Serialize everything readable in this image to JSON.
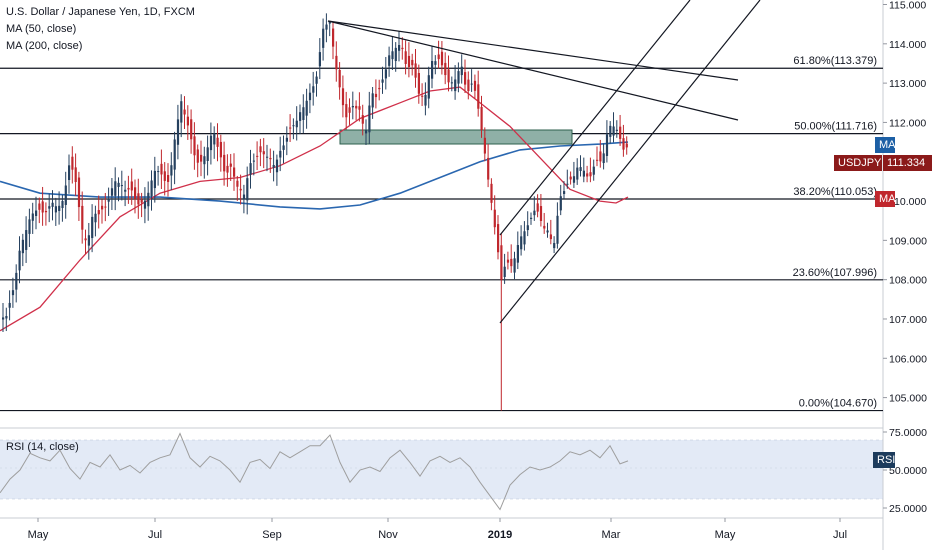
{
  "header": {
    "title": "U.S. Dollar / Japanese Yen, 1D, FXCM",
    "ma1_label": "MA (50, close)",
    "ma2_label": "MA (200, close)"
  },
  "rsi": {
    "label": "RSI (14, close)",
    "ticks": [
      "75.0000",
      "50.0000",
      "25.0000"
    ],
    "badge": "RSI"
  },
  "tags": {
    "ma_top": "MA",
    "symbol": "USDJPY",
    "price": "111.334",
    "ma_bottom": "MA"
  },
  "colors": {
    "candle_up": "#26415f",
    "candle_down": "#c0272d",
    "ma50": "#d0304a",
    "ma200": "#2a67b0",
    "zone_fill": "#8fb0a7",
    "rsi_band": "#e3eaf6",
    "rsi_line": "#9e9e9e",
    "tag_blue": "#1c5fa5",
    "tag_red": "#8b1a1a"
  },
  "chart_data": {
    "type": "candlestick",
    "title": "U.S. Dollar / Japanese Yen, 1D, FXCM",
    "ylim": [
      104.3,
      115.1
    ],
    "y_ticks": [
      "115.000",
      "114.000",
      "113.000",
      "112.000",
      "111.000",
      "110.000",
      "109.000",
      "108.000",
      "107.000",
      "106.000",
      "105.000"
    ],
    "x_ticks": [
      "May",
      "Jul",
      "Sep",
      "Nov",
      "2019",
      "Mar",
      "May",
      "Jul"
    ],
    "last_price": 111.334,
    "fib_levels": [
      {
        "label": "61.80%(113.379)",
        "value": 113.379
      },
      {
        "label": "50.00%(111.716)",
        "value": 111.716
      },
      {
        "label": "38.20%(110.053)",
        "value": 110.053
      },
      {
        "label": "23.60%(107.996)",
        "value": 107.996
      },
      {
        "label": "0.00%(104.670)",
        "value": 104.67
      }
    ],
    "series": [
      {
        "name": "MA (50, close)"
      },
      {
        "name": "MA (200, close)"
      }
    ],
    "price_path": [
      [
        0,
        107.0
      ],
      [
        8,
        107.1
      ],
      [
        14,
        107.7
      ],
      [
        20,
        108.7
      ],
      [
        28,
        109.5
      ],
      [
        36,
        109.8
      ],
      [
        44,
        109.6
      ],
      [
        54,
        110.0
      ],
      [
        62,
        109.9
      ],
      [
        70,
        110.9
      ],
      [
        76,
        110.5
      ],
      [
        82,
        109.3
      ],
      [
        88,
        109.0
      ],
      [
        94,
        109.8
      ],
      [
        100,
        109.6
      ],
      [
        108,
        109.9
      ],
      [
        116,
        110.6
      ],
      [
        124,
        110.4
      ],
      [
        132,
        110.2
      ],
      [
        140,
        109.8
      ],
      [
        148,
        110.2
      ],
      [
        156,
        110.9
      ],
      [
        164,
        110.5
      ],
      [
        170,
        110.4
      ],
      [
        176,
        111.8
      ],
      [
        182,
        112.6
      ],
      [
        188,
        112.0
      ],
      [
        194,
        111.2
      ],
      [
        200,
        110.8
      ],
      [
        208,
        111.4
      ],
      [
        214,
        111.9
      ],
      [
        220,
        111.2
      ],
      [
        226,
        110.6
      ],
      [
        232,
        110.8
      ],
      [
        238,
        110.4
      ],
      [
        244,
        110.2
      ],
      [
        250,
        110.9
      ],
      [
        258,
        111.1
      ],
      [
        266,
        111.2
      ],
      [
        274,
        111.0
      ],
      [
        282,
        111.3
      ],
      [
        290,
        111.7
      ],
      [
        298,
        112.1
      ],
      [
        306,
        112.6
      ],
      [
        312,
        112.8
      ],
      [
        318,
        113.2
      ],
      [
        324,
        114.4
      ],
      [
        330,
        114.6
      ],
      [
        336,
        113.6
      ],
      [
        342,
        112.6
      ],
      [
        348,
        112.0
      ],
      [
        354,
        112.4
      ],
      [
        360,
        112.3
      ],
      [
        366,
        111.8
      ],
      [
        372,
        112.8
      ],
      [
        378,
        112.6
      ],
      [
        384,
        113.1
      ],
      [
        390,
        113.7
      ],
      [
        396,
        114.0
      ],
      [
        402,
        114.0
      ],
      [
        408,
        113.3
      ],
      [
        414,
        113.4
      ],
      [
        420,
        112.6
      ],
      [
        426,
        112.8
      ],
      [
        432,
        113.6
      ],
      [
        438,
        113.6
      ],
      [
        444,
        113.3
      ],
      [
        450,
        112.9
      ],
      [
        456,
        113.2
      ],
      [
        462,
        113.5
      ],
      [
        468,
        112.7
      ],
      [
        474,
        113.0
      ],
      [
        480,
        112.1
      ],
      [
        486,
        111.2
      ],
      [
        490,
        110.3
      ],
      [
        494,
        109.7
      ],
      [
        498,
        108.8
      ],
      [
        502,
        107.9
      ],
      [
        506,
        108.4
      ],
      [
        512,
        108.3
      ],
      [
        518,
        108.9
      ],
      [
        524,
        109.3
      ],
      [
        530,
        109.4
      ],
      [
        536,
        109.8
      ],
      [
        542,
        109.4
      ],
      [
        548,
        109.3
      ],
      [
        554,
        108.9
      ],
      [
        560,
        110.0
      ],
      [
        566,
        110.3
      ],
      [
        572,
        110.5
      ],
      [
        578,
        110.9
      ],
      [
        584,
        110.9
      ],
      [
        590,
        110.5
      ],
      [
        596,
        111.0
      ],
      [
        602,
        110.9
      ],
      [
        608,
        111.8
      ],
      [
        612,
        112.0
      ],
      [
        616,
        112.0
      ],
      [
        620,
        111.6
      ],
      [
        624,
        111.3
      ],
      [
        628,
        111.3
      ]
    ],
    "rsi_path": [
      [
        0,
        35
      ],
      [
        10,
        44
      ],
      [
        20,
        50
      ],
      [
        30,
        61
      ],
      [
        40,
        58
      ],
      [
        50,
        56
      ],
      [
        60,
        63
      ],
      [
        70,
        51
      ],
      [
        80,
        44
      ],
      [
        90,
        55
      ],
      [
        100,
        52
      ],
      [
        110,
        60
      ],
      [
        120,
        50
      ],
      [
        130,
        53
      ],
      [
        140,
        48
      ],
      [
        150,
        55
      ],
      [
        160,
        58
      ],
      [
        170,
        60
      ],
      [
        180,
        74
      ],
      [
        190,
        58
      ],
      [
        200,
        52
      ],
      [
        210,
        59
      ],
      [
        220,
        56
      ],
      [
        230,
        50
      ],
      [
        240,
        42
      ],
      [
        250,
        55
      ],
      [
        260,
        57
      ],
      [
        270,
        51
      ],
      [
        280,
        62
      ],
      [
        290,
        58
      ],
      [
        300,
        62
      ],
      [
        310,
        66
      ],
      [
        320,
        66
      ],
      [
        330,
        73
      ],
      [
        340,
        55
      ],
      [
        350,
        42
      ],
      [
        360,
        50
      ],
      [
        370,
        52
      ],
      [
        380,
        49
      ],
      [
        390,
        58
      ],
      [
        400,
        63
      ],
      [
        410,
        55
      ],
      [
        420,
        46
      ],
      [
        430,
        56
      ],
      [
        440,
        59
      ],
      [
        450,
        55
      ],
      [
        460,
        58
      ],
      [
        470,
        52
      ],
      [
        480,
        42
      ],
      [
        490,
        33
      ],
      [
        500,
        24
      ],
      [
        510,
        40
      ],
      [
        520,
        47
      ],
      [
        530,
        52
      ],
      [
        540,
        50
      ],
      [
        550,
        52
      ],
      [
        560,
        56
      ],
      [
        570,
        62
      ],
      [
        580,
        60
      ],
      [
        590,
        63
      ],
      [
        600,
        58
      ],
      [
        610,
        66
      ],
      [
        620,
        54
      ],
      [
        628,
        56
      ]
    ],
    "ma50_path": [
      [
        0,
        106.7
      ],
      [
        40,
        107.3
      ],
      [
        80,
        108.5
      ],
      [
        120,
        109.6
      ],
      [
        160,
        110.2
      ],
      [
        200,
        110.5
      ],
      [
        240,
        110.6
      ],
      [
        280,
        110.9
      ],
      [
        320,
        111.4
      ],
      [
        360,
        112.1
      ],
      [
        400,
        112.5
      ],
      [
        430,
        112.8
      ],
      [
        460,
        112.9
      ],
      [
        480,
        112.5
      ],
      [
        510,
        111.9
      ],
      [
        540,
        111.1
      ],
      [
        570,
        110.3
      ],
      [
        600,
        110.0
      ],
      [
        616,
        109.95
      ],
      [
        628,
        110.1
      ]
    ],
    "ma200_path": [
      [
        0,
        110.5
      ],
      [
        40,
        110.2
      ],
      [
        100,
        110.1
      ],
      [
        160,
        110.1
      ],
      [
        220,
        110.0
      ],
      [
        280,
        109.85
      ],
      [
        320,
        109.8
      ],
      [
        360,
        109.9
      ],
      [
        400,
        110.2
      ],
      [
        440,
        110.6
      ],
      [
        480,
        111.0
      ],
      [
        520,
        111.3
      ],
      [
        560,
        111.4
      ],
      [
        600,
        111.45
      ],
      [
        628,
        111.5
      ]
    ]
  }
}
